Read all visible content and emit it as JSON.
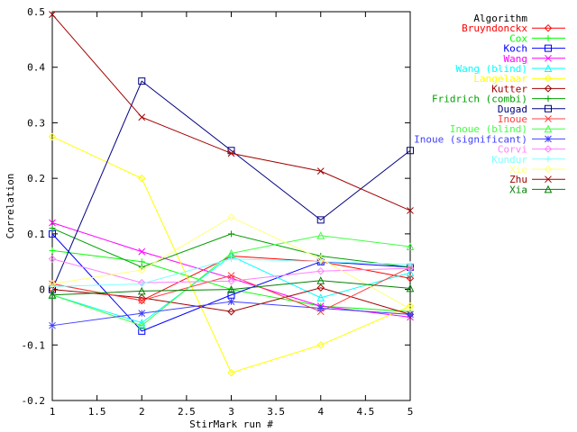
{
  "chart_data": {
    "type": "line",
    "xlabel": "StirMark run #",
    "ylabel": "Correlation",
    "xlim": [
      1,
      5
    ],
    "ylim": [
      -0.2,
      0.5
    ],
    "x_ticks": [
      "1",
      "1.5",
      "2",
      "2.5",
      "3",
      "3.5",
      "4",
      "4.5",
      "5"
    ],
    "y_ticks": [
      "-0.2",
      "-0.1",
      "0",
      "0.1",
      "0.2",
      "0.3",
      "0.4",
      "0.5"
    ],
    "legend_title": "Algorithm",
    "legend_position": "top-right outside",
    "grid": false,
    "x": [
      1,
      2,
      3,
      4,
      5
    ],
    "series": [
      {
        "name": "Bruyndonckx",
        "color": "#ff0000",
        "marker": "diamond",
        "values": [
          0.01,
          -0.02,
          0.06,
          0.05,
          0.02
        ]
      },
      {
        "name": "Cox",
        "color": "#00ff00",
        "marker": "plus",
        "values": [
          0.07,
          0.05,
          0.0,
          -0.03,
          -0.04
        ]
      },
      {
        "name": "Koch",
        "color": "#0000ff",
        "marker": "square",
        "values": [
          0.1,
          -0.075,
          -0.01,
          0.05,
          0.04
        ]
      },
      {
        "name": "Wang",
        "color": "#ff00ff",
        "marker": "cross",
        "values": [
          0.12,
          0.068,
          0.02,
          -0.03,
          -0.05
        ]
      },
      {
        "name": "Wang (blind)",
        "color": "#00ffff",
        "marker": "triangle",
        "values": [
          -0.01,
          -0.06,
          0.06,
          -0.015,
          0.03
        ]
      },
      {
        "name": "Langelaar",
        "color": "#ffff00",
        "marker": "diamond",
        "values": [
          0.275,
          0.2,
          -0.15,
          -0.1,
          -0.03
        ]
      },
      {
        "name": "Kutter",
        "color": "#a00000",
        "marker": "diamond",
        "values": [
          0.0,
          -0.015,
          -0.04,
          0.003,
          -0.045
        ]
      },
      {
        "name": "Fridrich (combi)",
        "color": "#00a000",
        "marker": "plus",
        "values": [
          0.11,
          0.04,
          0.1,
          0.06,
          0.04
        ]
      },
      {
        "name": "Dugad",
        "color": "#000080",
        "marker": "square",
        "values": [
          0.0,
          0.375,
          0.25,
          0.125,
          0.25
        ]
      },
      {
        "name": "Inoue",
        "color": "#ff4040",
        "marker": "cross",
        "values": [
          0.01,
          -0.02,
          0.025,
          -0.04,
          0.04
        ]
      },
      {
        "name": "Inoue (blind)",
        "color": "#40ff40",
        "marker": "triangle",
        "values": [
          -0.01,
          -0.065,
          0.065,
          0.097,
          0.077
        ]
      },
      {
        "name": "Inoue (significant)",
        "color": "#4040ff",
        "marker": "star",
        "values": [
          -0.065,
          -0.043,
          -0.022,
          -0.034,
          -0.045
        ]
      },
      {
        "name": "Corvi",
        "color": "#ff80ff",
        "marker": "diamond",
        "values": [
          0.055,
          0.012,
          0.015,
          0.033,
          0.038
        ]
      },
      {
        "name": "Kundur",
        "color": "#80ffff",
        "marker": "plus",
        "values": [
          0.005,
          0.01,
          0.055,
          0.05,
          0.045
        ]
      },
      {
        "name": "Xie",
        "color": "#ffff80",
        "marker": "diamond",
        "values": [
          0.01,
          0.035,
          0.13,
          0.055,
          -0.035
        ]
      },
      {
        "name": "Zhu",
        "color": "#a00000",
        "marker": "cross",
        "values": [
          0.495,
          0.31,
          0.245,
          0.213,
          0.142
        ]
      },
      {
        "name": "Xia",
        "color": "#008000",
        "marker": "triangle",
        "values": [
          -0.01,
          -0.003,
          0.0,
          0.016,
          0.002
        ]
      }
    ]
  }
}
